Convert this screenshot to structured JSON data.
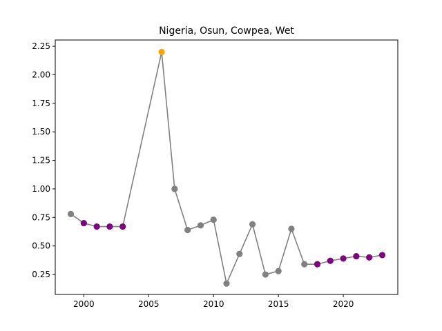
{
  "chart_data": {
    "type": "line",
    "title": "Nigeria, Osun, Cowpea, Wet",
    "xlabel": "",
    "ylabel": "",
    "xlim": [
      1997.8,
      2024.2
    ],
    "ylim": [
      0.075,
      2.305
    ],
    "x_ticks": [
      2000,
      2005,
      2010,
      2015,
      2020
    ],
    "x_tick_labels": [
      "2000",
      "2005",
      "2010",
      "2015",
      "2020"
    ],
    "y_ticks": [
      0.25,
      0.5,
      0.75,
      1.0,
      1.25,
      1.5,
      1.75,
      2.0,
      2.25
    ],
    "y_tick_labels": [
      "0.25",
      "0.50",
      "0.75",
      "1.00",
      "1.25",
      "1.50",
      "1.75",
      "2.00",
      "2.25"
    ],
    "grid": false,
    "line_color": "#808080",
    "marker_colors": {
      "gray": "#808080",
      "purple": "#800080",
      "orange": "#FFA500"
    },
    "points": [
      {
        "x": 1999,
        "y": 0.78,
        "color": "gray"
      },
      {
        "x": 2000,
        "y": 0.7,
        "color": "purple"
      },
      {
        "x": 2001,
        "y": 0.67,
        "color": "purple"
      },
      {
        "x": 2002,
        "y": 0.67,
        "color": "purple"
      },
      {
        "x": 2003,
        "y": 0.67,
        "color": "purple"
      },
      {
        "x": 2006,
        "y": 2.2,
        "color": "orange"
      },
      {
        "x": 2007,
        "y": 1.0,
        "color": "gray"
      },
      {
        "x": 2008,
        "y": 0.64,
        "color": "gray"
      },
      {
        "x": 2009,
        "y": 0.68,
        "color": "gray"
      },
      {
        "x": 2010,
        "y": 0.73,
        "color": "gray"
      },
      {
        "x": 2011,
        "y": 0.17,
        "color": "gray"
      },
      {
        "x": 2012,
        "y": 0.43,
        "color": "gray"
      },
      {
        "x": 2013,
        "y": 0.69,
        "color": "gray"
      },
      {
        "x": 2014,
        "y": 0.25,
        "color": "gray"
      },
      {
        "x": 2015,
        "y": 0.28,
        "color": "gray"
      },
      {
        "x": 2016,
        "y": 0.65,
        "color": "gray"
      },
      {
        "x": 2017,
        "y": 0.34,
        "color": "gray"
      },
      {
        "x": 2018,
        "y": 0.34,
        "color": "purple"
      },
      {
        "x": 2019,
        "y": 0.37,
        "color": "purple"
      },
      {
        "x": 2020,
        "y": 0.39,
        "color": "purple"
      },
      {
        "x": 2021,
        "y": 0.41,
        "color": "purple"
      },
      {
        "x": 2022,
        "y": 0.4,
        "color": "purple"
      },
      {
        "x": 2023,
        "y": 0.42,
        "color": "purple"
      }
    ]
  }
}
